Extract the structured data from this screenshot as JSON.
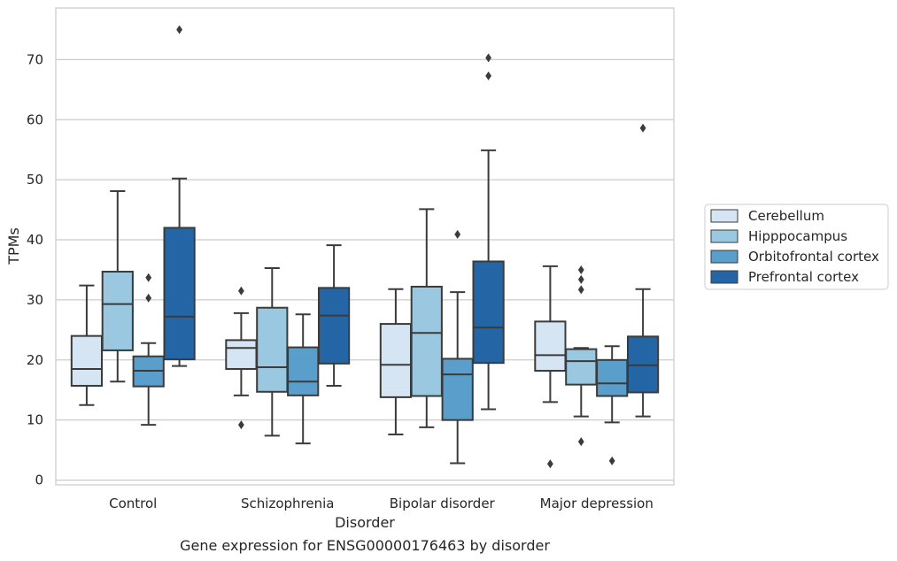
{
  "chart_data": {
    "type": "boxplot",
    "caption": "Gene expression for ENSG00000176463 by disorder",
    "xlabel": "Disorder",
    "ylabel": "TPMs",
    "ylim": [
      -0.8,
      78.6
    ],
    "yticks": [
      0,
      10,
      20,
      30,
      40,
      50,
      60,
      70
    ],
    "grid": "horizontal",
    "legend_position": "right",
    "categories": [
      "Control",
      "Schizophrenia",
      "Bipolar disorder",
      "Major depression"
    ],
    "series": [
      {
        "name": "Cerebellum",
        "color": "#d6e5f3",
        "boxes": [
          {
            "whislo": 12.5,
            "q1": 15.7,
            "med": 18.5,
            "q3": 24.0,
            "whishi": 32.4,
            "fliers": []
          },
          {
            "whislo": 14.1,
            "q1": 18.5,
            "med": 22.0,
            "q3": 23.3,
            "whishi": 27.8,
            "fliers": [
              31.5,
              9.2
            ]
          },
          {
            "whislo": 7.6,
            "q1": 13.8,
            "med": 19.2,
            "q3": 26.0,
            "whishi": 31.8,
            "fliers": []
          },
          {
            "whislo": 13.0,
            "q1": 18.2,
            "med": 20.8,
            "q3": 26.4,
            "whishi": 35.6,
            "fliers": [
              2.7
            ]
          }
        ]
      },
      {
        "name": "Hipppocampus",
        "color": "#9ac8e0",
        "boxes": [
          {
            "whislo": 16.4,
            "q1": 21.6,
            "med": 29.3,
            "q3": 34.7,
            "whishi": 48.1,
            "fliers": []
          },
          {
            "whislo": 7.4,
            "q1": 14.7,
            "med": 18.8,
            "q3": 28.7,
            "whishi": 35.3,
            "fliers": []
          },
          {
            "whislo": 8.8,
            "q1": 14.0,
            "med": 24.5,
            "q3": 32.2,
            "whishi": 45.1,
            "fliers": []
          },
          {
            "whislo": 10.6,
            "q1": 15.9,
            "med": 19.8,
            "q3": 21.8,
            "whishi": 22.0,
            "fliers": [
              35.0,
              33.4,
              31.7,
              6.4
            ]
          }
        ]
      },
      {
        "name": "Orbitofrontal cortex",
        "color": "#5a9ecb",
        "boxes": [
          {
            "whislo": 9.2,
            "q1": 15.6,
            "med": 18.2,
            "q3": 20.6,
            "whishi": 22.8,
            "fliers": [
              33.7,
              30.3
            ]
          },
          {
            "whislo": 6.1,
            "q1": 14.1,
            "med": 16.4,
            "q3": 22.1,
            "whishi": 27.6,
            "fliers": []
          },
          {
            "whislo": 2.8,
            "q1": 10.0,
            "med": 17.6,
            "q3": 20.2,
            "whishi": 31.3,
            "fliers": [
              40.9
            ]
          },
          {
            "whislo": 9.6,
            "q1": 14.0,
            "med": 16.1,
            "q3": 20.0,
            "whishi": 22.3,
            "fliers": [
              3.2
            ]
          }
        ]
      },
      {
        "name": "Prefrontal cortex",
        "color": "#2466a5",
        "boxes": [
          {
            "whislo": 19.0,
            "q1": 20.1,
            "med": 27.2,
            "q3": 42.0,
            "whishi": 50.2,
            "fliers": [
              75.0
            ]
          },
          {
            "whislo": 15.7,
            "q1": 19.4,
            "med": 27.4,
            "q3": 32.0,
            "whishi": 39.1,
            "fliers": []
          },
          {
            "whislo": 11.8,
            "q1": 19.5,
            "med": 25.4,
            "q3": 36.4,
            "whishi": 54.9,
            "fliers": [
              70.3,
              67.3
            ]
          },
          {
            "whislo": 10.6,
            "q1": 14.6,
            "med": 19.1,
            "q3": 23.9,
            "whishi": 31.8,
            "fliers": [
              58.6
            ]
          }
        ]
      }
    ]
  }
}
